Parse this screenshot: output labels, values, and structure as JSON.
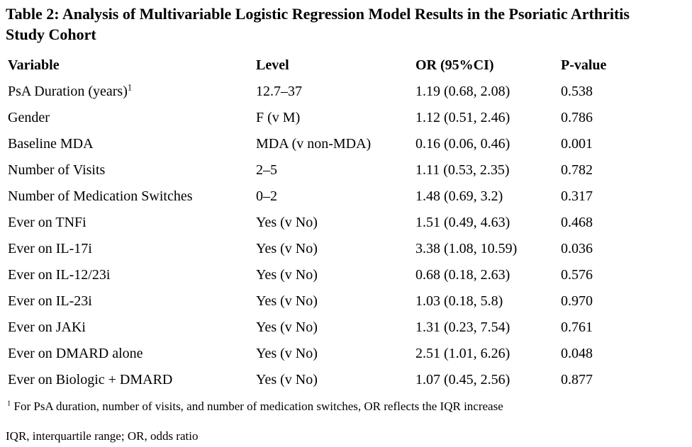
{
  "title": "Table 2: Analysis of Multivariable Logistic Regression Model Results in the Psoriatic Arthritis Study Cohort",
  "table": {
    "headers": [
      "Variable",
      "Level",
      "OR (95%CI)",
      "P-value"
    ],
    "rows": [
      {
        "variable": "PsA Duration (years)",
        "variable_sup": "1",
        "level": "12.7–37",
        "or_ci": "1.19 (0.68, 2.08)",
        "p_value": "0.538"
      },
      {
        "variable": "Gender",
        "level": "F (v M)",
        "or_ci": "1.12 (0.51, 2.46)",
        "p_value": "0.786"
      },
      {
        "variable": "Baseline MDA",
        "level": "MDA (v non-MDA)",
        "or_ci": "0.16 (0.06, 0.46)",
        "p_value": "0.001"
      },
      {
        "variable": "Number of Visits",
        "level": "2–5",
        "or_ci": "1.11 (0.53, 2.35)",
        "p_value": "0.782"
      },
      {
        "variable": "Number of Medication Switches",
        "level": "0–2",
        "or_ci": "1.48 (0.69, 3.2)",
        "p_value": "0.317"
      },
      {
        "variable": "Ever on TNFi",
        "level": "Yes (v No)",
        "or_ci": "1.51 (0.49, 4.63)",
        "p_value": "0.468"
      },
      {
        "variable": "Ever on IL-17i",
        "level": "Yes (v No)",
        "or_ci": "3.38 (1.08, 10.59)",
        "p_value": "0.036"
      },
      {
        "variable": "Ever on IL-12/23i",
        "level": "Yes (v No)",
        "or_ci": "0.68 (0.18, 2.63)",
        "p_value": "0.576"
      },
      {
        "variable": "Ever on IL-23i",
        "level": "Yes (v No)",
        "or_ci": "1.03 (0.18, 5.8)",
        "p_value": "0.970"
      },
      {
        "variable": "Ever on JAKi",
        "level": "Yes (v No)",
        "or_ci": "1.31 (0.23, 7.54)",
        "p_value": "0.761"
      },
      {
        "variable": "Ever on DMARD alone",
        "level": "Yes (v No)",
        "or_ci": "2.51 (1.01, 6.26)",
        "p_value": "0.048"
      },
      {
        "variable": "Ever on Biologic + DMARD",
        "level": "Yes (v No)",
        "or_ci": "1.07 (0.45, 2.56)",
        "p_value": "0.877"
      }
    ]
  },
  "footnotes": {
    "marker": "1",
    "line1": "For PsA duration, number of visits, and number of medication switches, OR reflects the IQR increase",
    "line2": "IQR, interquartile range; OR, odds ratio"
  }
}
